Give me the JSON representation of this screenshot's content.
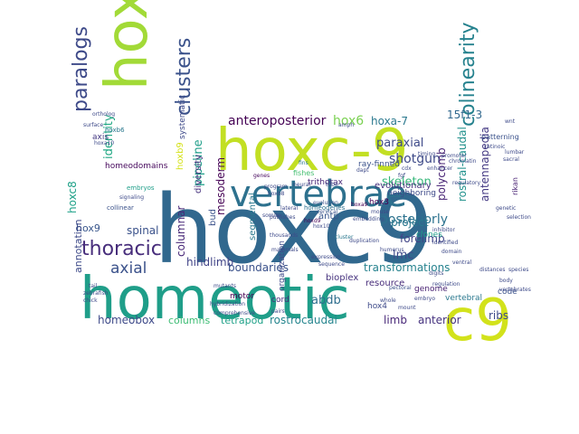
{
  "words": [
    {
      "text": "hoxc9",
      "color": "#31688e"
    },
    {
      "text": "hoxc-9",
      "color": "#c2df23"
    },
    {
      "text": "homeotic",
      "color": "#1f9e89"
    },
    {
      "text": "hox",
      "color": "#a2da37"
    },
    {
      "text": "c9",
      "color": "#d2e21b"
    },
    {
      "text": "vertebrae",
      "color": "#2d718e"
    },
    {
      "text": "colinearity",
      "color": "#26828e"
    },
    {
      "text": "clusters",
      "color": "#3b528b"
    },
    {
      "text": "paralogs",
      "color": "#3e4a89"
    },
    {
      "text": "thoracic",
      "color": "#472d7b"
    },
    {
      "text": "axial",
      "color": "#3b528b"
    },
    {
      "text": "anteroposterior",
      "color": "#440154"
    },
    {
      "text": "hox6",
      "color": "#7ad151"
    },
    {
      "text": "hoxa-7",
      "color": "#2a788e"
    },
    {
      "text": "15f1-3",
      "color": "#31688e"
    },
    {
      "text": "paraxial",
      "color": "#3e4a89"
    },
    {
      "text": "shotgun",
      "color": "#3e4a89"
    },
    {
      "text": "skeleton",
      "color": "#35b779"
    },
    {
      "text": "posteriorly",
      "color": "#2c728e"
    },
    {
      "text": "forelimb",
      "color": "#414487"
    },
    {
      "text": "polycomb",
      "color": "#482475"
    },
    {
      "text": "rostral-caudal",
      "color": "#21918c"
    },
    {
      "text": "antennapedia",
      "color": "#443983"
    },
    {
      "text": "identity",
      "color": "#22a884"
    },
    {
      "text": "pipeline",
      "color": "#1f9e89"
    },
    {
      "text": "hoxb9",
      "color": "#d5e21a"
    },
    {
      "text": "hoxc8",
      "color": "#1fa188"
    },
    {
      "text": "hox9",
      "color": "#39568c"
    },
    {
      "text": "spinal",
      "color": "#3b528b"
    },
    {
      "text": "columnar",
      "color": "#482878"
    },
    {
      "text": "hindlimb",
      "color": "#414487"
    },
    {
      "text": "mesoderm",
      "color": "#440154"
    },
    {
      "text": "boundaries",
      "color": "#3b528b"
    },
    {
      "text": "project",
      "color": "#2a788e"
    },
    {
      "text": "lmc",
      "color": "#3e4a89"
    },
    {
      "text": "transformations",
      "color": "#26828e"
    },
    {
      "text": "annotation",
      "color": "#3e4a89"
    },
    {
      "text": "homeobox",
      "color": "#3e4a89"
    },
    {
      "text": "columns",
      "color": "#3dbc74"
    },
    {
      "text": "tetrapod",
      "color": "#1fa188"
    },
    {
      "text": "rostrocaudal",
      "color": "#25858e"
    },
    {
      "text": "abdb",
      "color": "#2e6e8e"
    },
    {
      "text": "limb",
      "color": "#482878"
    },
    {
      "text": "anterior",
      "color": "#46337f"
    },
    {
      "text": "ribs",
      "color": "#3e4a89"
    },
    {
      "text": "homeodomains",
      "color": "#46085c"
    },
    {
      "text": "systematic",
      "color": "#3e4a89"
    },
    {
      "text": "diversity",
      "color": "#46327e"
    },
    {
      "text": "bud",
      "color": "#3b528b"
    },
    {
      "text": "segmental",
      "color": "#2a788e"
    },
    {
      "text": "evolutionary",
      "color": "#46327e"
    },
    {
      "text": "antp",
      "color": "#39568c"
    },
    {
      "text": "resource",
      "color": "#472c7a"
    },
    {
      "text": "genome",
      "color": "#482173"
    },
    {
      "text": "code",
      "color": "#3b528b"
    },
    {
      "text": "cord",
      "color": "#472c7a"
    },
    {
      "text": "motor",
      "color": "#440154"
    },
    {
      "text": "hox4",
      "color": "#3e4a89"
    },
    {
      "text": "bioplex",
      "color": "#46327e"
    },
    {
      "text": "trithorax",
      "color": "#482878"
    },
    {
      "text": "hox3",
      "color": "#440154"
    },
    {
      "text": "neighboring",
      "color": "#3e4a89"
    },
    {
      "text": "ray-finned",
      "color": "#3b528b"
    },
    {
      "text": "clones",
      "color": "#1f9e89"
    },
    {
      "text": "fishes",
      "color": "#44bf70"
    },
    {
      "text": "vertebral",
      "color": "#2a788e"
    },
    {
      "text": "organization",
      "color": "#3e4a89"
    },
    {
      "text": "patterning",
      "color": "#3b528b"
    },
    {
      "text": "rikan",
      "color": "#482173"
    },
    {
      "text": "axis",
      "color": "#443983"
    },
    {
      "text": "homeogenes",
      "color": "#2d708e"
    },
    {
      "text": "collinear",
      "color": "#3b528b"
    },
    {
      "text": "embryos",
      "color": "#1f9e89"
    },
    {
      "text": "hoxb6",
      "color": "#2a788e"
    },
    {
      "text": "ortholog",
      "color": "#3e4a89"
    },
    {
      "text": "surface",
      "color": "#3e4a89"
    },
    {
      "text": "cervical",
      "color": "#3b528b"
    },
    {
      "text": "evolution",
      "color": "#3b528b"
    },
    {
      "text": "thousands",
      "color": "#3e4a89"
    },
    {
      "text": "cluster",
      "color": "#2a788e"
    },
    {
      "text": "duplication",
      "color": "#3e4a89"
    },
    {
      "text": "program",
      "color": "#3e4a89"
    },
    {
      "text": "hoxd9",
      "color": "#440154"
    },
    {
      "text": "hox10",
      "color": "#3e4a89"
    },
    {
      "text": "genes",
      "color": "#46085c"
    },
    {
      "text": "pectoral",
      "color": "#3b528b"
    },
    {
      "text": "humerus",
      "color": "#3e4a89"
    },
    {
      "text": "fins",
      "color": "#2a788e"
    },
    {
      "text": "dapt",
      "color": "#3e4a89"
    },
    {
      "text": "amph",
      "color": "#3e4a89"
    },
    {
      "text": "body",
      "color": "#3e4a89"
    },
    {
      "text": "distances",
      "color": "#3e4a89"
    },
    {
      "text": "regulatory",
      "color": "#3e4a89"
    },
    {
      "text": "mouse",
      "color": "#3e4a89"
    },
    {
      "text": "hoxa9",
      "color": "#440154"
    },
    {
      "text": "hoxb8",
      "color": "#3e4a89"
    },
    {
      "text": "lateral",
      "color": "#3e4a89"
    },
    {
      "text": "domain",
      "color": "#3e4a89"
    },
    {
      "text": "ventral",
      "color": "#3e4a89"
    },
    {
      "text": "sequence",
      "color": "#3e4a89"
    },
    {
      "text": "expression",
      "color": "#3e4a89"
    },
    {
      "text": "tail",
      "color": "#3e4a89"
    },
    {
      "text": "zebrafish",
      "color": "#3e4a89"
    },
    {
      "text": "chick",
      "color": "#3e4a89"
    },
    {
      "text": "mutants",
      "color": "#3e4a89"
    },
    {
      "text": "wnt",
      "color": "#3e4a89"
    },
    {
      "text": "retinoic",
      "color": "#3e4a89"
    },
    {
      "text": "lumbar",
      "color": "#3e4a89"
    },
    {
      "text": "sacral",
      "color": "#3e4a89"
    },
    {
      "text": "hoxa10",
      "color": "#3e4a89"
    },
    {
      "text": "signaling",
      "color": "#3e4a89"
    },
    {
      "text": "somite",
      "color": "#3e4a89"
    },
    {
      "text": "neural",
      "color": "#3e4a89"
    },
    {
      "text": "tube",
      "color": "#3e4a89"
    },
    {
      "text": "digits",
      "color": "#3e4a89"
    },
    {
      "text": "regulation",
      "color": "#3e4a89"
    },
    {
      "text": "embryo",
      "color": "#3e4a89"
    },
    {
      "text": "fgf",
      "color": "#3e4a89"
    },
    {
      "text": "cdx",
      "color": "#3e4a89"
    },
    {
      "text": "enhancer",
      "color": "#3e4a89"
    },
    {
      "text": "promoter",
      "color": "#3e4a89"
    },
    {
      "text": "chromatin",
      "color": "#3e4a89"
    },
    {
      "text": "timing",
      "color": "#3e4a89"
    },
    {
      "text": "hybridization",
      "color": "#3e4a89"
    },
    {
      "text": "comprehensive",
      "color": "#3e4a89"
    },
    {
      "text": "publishes",
      "color": "#3e4a89"
    },
    {
      "text": "embedding",
      "color": "#3e4a89"
    },
    {
      "text": "mammals",
      "color": "#3e4a89"
    },
    {
      "text": "identified",
      "color": "#3e4a89"
    },
    {
      "text": "inhibitor",
      "color": "#3e4a89"
    },
    {
      "text": "genetic",
      "color": "#3e4a89"
    },
    {
      "text": "selection",
      "color": "#3e4a89"
    },
    {
      "text": "pairs",
      "color": "#3e4a89"
    },
    {
      "text": "whole",
      "color": "#3e4a89"
    },
    {
      "text": "mount",
      "color": "#3e4a89"
    },
    {
      "text": "species",
      "color": "#3e4a89"
    },
    {
      "text": "vertebrates",
      "color": "#3e4a89"
    }
  ]
}
